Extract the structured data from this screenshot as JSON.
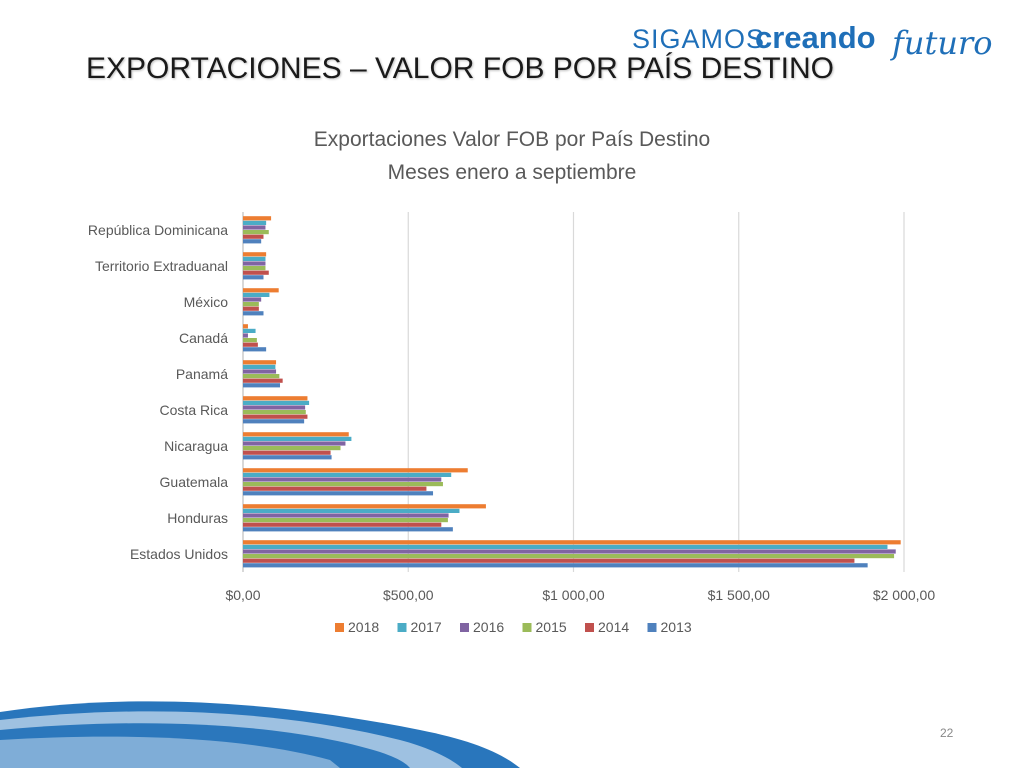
{
  "logo": {
    "part1": "SIGAMOS",
    "part2": "creando",
    "part3": "futuro"
  },
  "slide": {
    "title": "EXPORTACIONES –  VALOR FOB POR PAÍS DESTINO",
    "page_number": "22"
  },
  "colors": {
    "2018": "#ED7D31",
    "2017": "#4BACC6",
    "2016": "#8064A2",
    "2015": "#9BBB59",
    "2014": "#C0504D",
    "2013": "#4F81BD",
    "logo_blue": "#1F6FB8",
    "wave_blue": "#1E6FB8"
  },
  "chart_data": {
    "type": "bar",
    "orientation": "horizontal",
    "title": "Exportaciones Valor FOB por País Destino",
    "subtitle": "Meses enero a septiembre",
    "xlim": [
      0,
      2000
    ],
    "tick_labels": [
      "$0,00",
      "$500,00",
      "$1 000,00",
      "$1 500,00",
      "$2 000,00"
    ],
    "grid": true,
    "legend_position": "bottom",
    "categories": [
      "República Dominicana",
      "Territorio Extraduanal",
      "México",
      "Canadá",
      "Panamá",
      "Costa Rica",
      "Nicaragua",
      "Guatemala",
      "Honduras",
      "Estados Unidos"
    ],
    "series": [
      {
        "name": "2018",
        "values": [
          85,
          70,
          108,
          15,
          100,
          195,
          320,
          680,
          735,
          1990
        ]
      },
      {
        "name": "2017",
        "values": [
          70,
          68,
          80,
          38,
          98,
          200,
          328,
          630,
          655,
          1950
        ]
      },
      {
        "name": "2016",
        "values": [
          68,
          68,
          55,
          15,
          100,
          188,
          310,
          600,
          622,
          1975
        ]
      },
      {
        "name": "2015",
        "values": [
          78,
          68,
          48,
          42,
          110,
          190,
          295,
          605,
          620,
          1970
        ]
      },
      {
        "name": "2014",
        "values": [
          62,
          78,
          48,
          45,
          120,
          195,
          265,
          555,
          600,
          1850
        ]
      },
      {
        "name": "2013",
        "values": [
          55,
          62,
          62,
          70,
          112,
          185,
          268,
          575,
          635,
          1890
        ]
      }
    ]
  }
}
